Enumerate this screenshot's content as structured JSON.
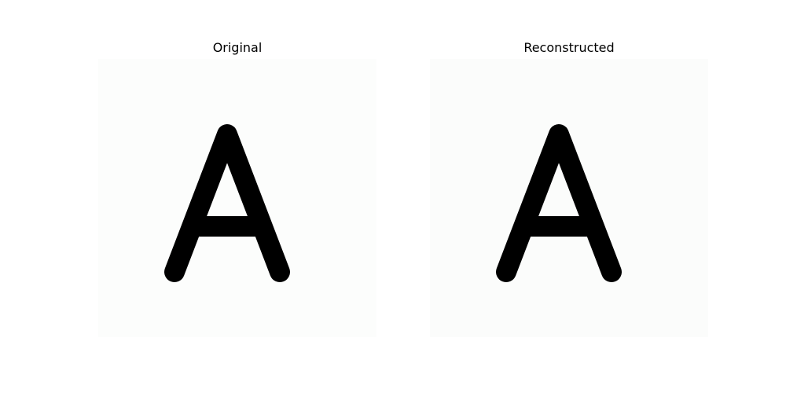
{
  "panels": [
    {
      "title": "Original",
      "image": {
        "content": "letter-A",
        "background_color": "#fcfdfc",
        "glyph_color": "#000000"
      }
    },
    {
      "title": "Reconstructed",
      "image": {
        "content": "letter-A",
        "background_color": "#fbfcfb",
        "glyph_color": "#000000"
      }
    }
  ]
}
